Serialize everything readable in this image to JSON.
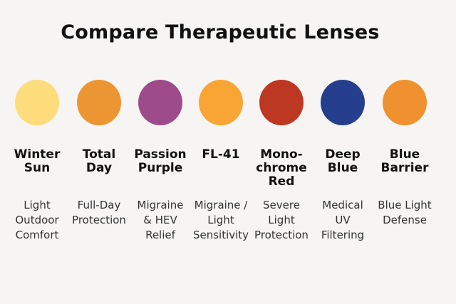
{
  "title": "Compare Therapeutic Lenses",
  "lenses": [
    {
      "name": "Winter\nSun",
      "description": "Light\nOutdoor\nComfort",
      "color": "#fddc7c"
    },
    {
      "name": "Total\nDay",
      "description": "Full-Day\nProtection",
      "color": "#ec9533"
    },
    {
      "name": "Passion\nPurple",
      "description": "Migraine\n& HEV\nRelief",
      "color": "#9e4b8c"
    },
    {
      "name": "FL-41",
      "description": "Migraine /\nLight\nSensitivity",
      "color": "#f9a535"
    },
    {
      "name": "Mono-\nchrome\nRed",
      "description": "Severe\nLight\nProtection",
      "color": "#bd3822"
    },
    {
      "name": "Deep\nBlue",
      "description": "Medical\nUV\nFiltering",
      "color": "#253f8e"
    },
    {
      "name": "Blue\nBarrier",
      "description": "Blue Light\nDefense",
      "color": "#ee912e"
    }
  ]
}
